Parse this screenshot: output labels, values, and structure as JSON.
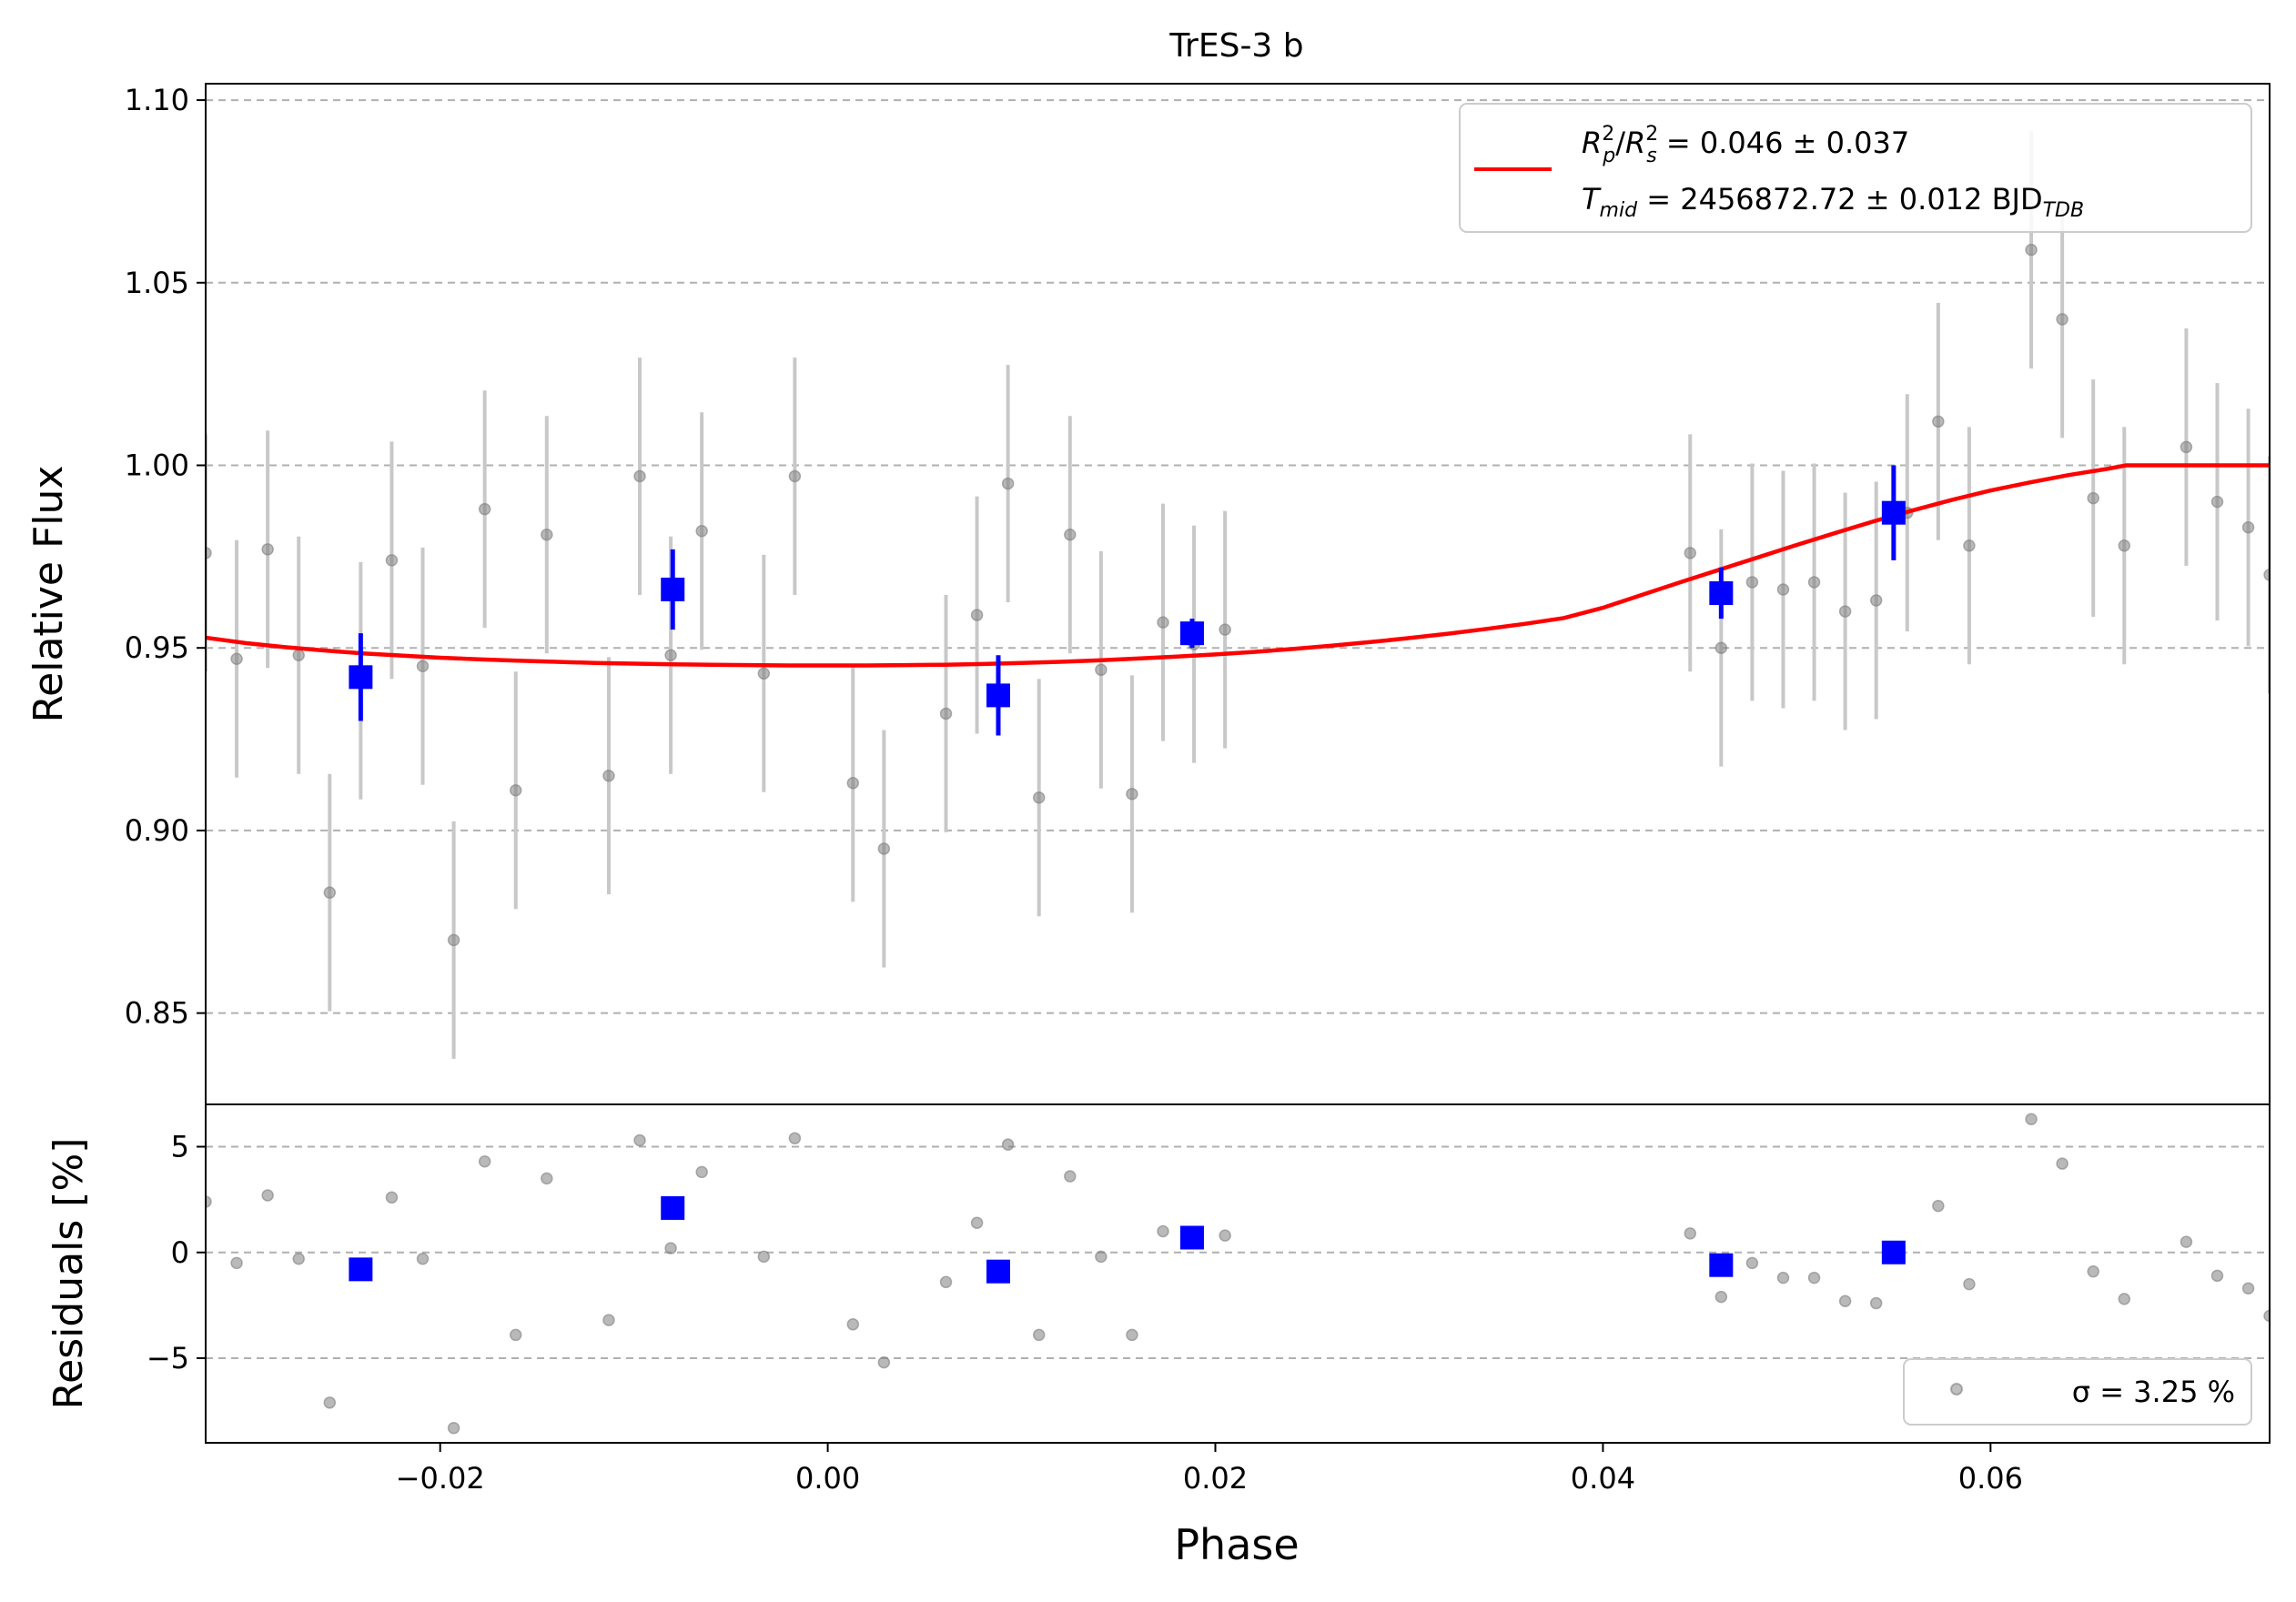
{
  "chart_data": [
    {
      "type": "scatter",
      "title": "TrES-3 b",
      "xlabel": "",
      "ylabel": "Relative Flux",
      "xlim": [
        -0.0321,
        0.0744
      ],
      "ylim": [
        0.825,
        1.1045
      ],
      "y_ticks": [
        0.85,
        0.9,
        0.95,
        1.0,
        1.05,
        1.1
      ],
      "y_tick_labels": [
        "0.85",
        "0.90",
        "0.95",
        "1.00",
        "1.05",
        "1.10"
      ],
      "grid": "horizontal dashed",
      "legend_position": "upper-right",
      "legend": {
        "line1": "Rp²/Rs² = 0.046 ± 0.037",
        "line2": "Tmid = 2456872.72 ± 0.012 BJD_TDB"
      },
      "colors": {
        "raw": "#808080",
        "binned": "#0000ff",
        "model": "#ff0000",
        "grid": "#b0b0b0"
      },
      "series": [
        {
          "kind": "raw",
          "points": [
            {
              "x": -0.0321,
              "y": 0.976,
              "err": 0.0325
            },
            {
              "x": -0.0305,
              "y": 0.947,
              "err": 0.0325
            },
            {
              "x": -0.0289,
              "y": 0.977,
              "err": 0.0325
            },
            {
              "x": -0.0273,
              "y": 0.948,
              "err": 0.0325
            },
            {
              "x": -0.0257,
              "y": 0.883,
              "err": 0.0325
            },
            {
              "x": -0.0241,
              "y": 0.941,
              "err": 0.0325
            },
            {
              "x": -0.0225,
              "y": 0.974,
              "err": 0.0325
            },
            {
              "x": -0.0209,
              "y": 0.945,
              "err": 0.0325
            },
            {
              "x": -0.0193,
              "y": 0.87,
              "err": 0.0325
            },
            {
              "x": -0.0177,
              "y": 0.988,
              "err": 0.0325
            },
            {
              "x": -0.0161,
              "y": 0.911,
              "err": 0.0325
            },
            {
              "x": -0.0145,
              "y": 0.981,
              "err": 0.0325
            },
            {
              "x": -0.0113,
              "y": 0.915,
              "err": 0.0325
            },
            {
              "x": -0.0097,
              "y": 0.997,
              "err": 0.0325
            },
            {
              "x": -0.0081,
              "y": 0.948,
              "err": 0.0325
            },
            {
              "x": -0.0065,
              "y": 0.982,
              "err": 0.0325
            },
            {
              "x": -0.0033,
              "y": 0.943,
              "err": 0.0325
            },
            {
              "x": -0.0017,
              "y": 0.997,
              "err": 0.0325
            },
            {
              "x": 0.0013,
              "y": 0.913,
              "err": 0.0325
            },
            {
              "x": 0.0029,
              "y": 0.895,
              "err": 0.0325
            },
            {
              "x": 0.0061,
              "y": 0.932,
              "err": 0.0325
            },
            {
              "x": 0.0077,
              "y": 0.959,
              "err": 0.0325
            },
            {
              "x": 0.0093,
              "y": 0.995,
              "err": 0.0325
            },
            {
              "x": 0.0109,
              "y": 0.909,
              "err": 0.0325
            },
            {
              "x": 0.0125,
              "y": 0.981,
              "err": 0.0325
            },
            {
              "x": 0.0141,
              "y": 0.944,
              "err": 0.0325
            },
            {
              "x": 0.0157,
              "y": 0.91,
              "err": 0.0325
            },
            {
              "x": 0.0173,
              "y": 0.957,
              "err": 0.0325
            },
            {
              "x": 0.0189,
              "y": 0.951,
              "err": 0.0325
            },
            {
              "x": 0.0205,
              "y": 0.955,
              "err": 0.0325
            },
            {
              "x": 0.0445,
              "y": 0.976,
              "err": 0.0325
            },
            {
              "x": 0.0461,
              "y": 0.95,
              "err": 0.0325
            },
            {
              "x": 0.0477,
              "y": 0.968,
              "err": 0.0325
            },
            {
              "x": 0.0493,
              "y": 0.966,
              "err": 0.0325
            },
            {
              "x": 0.0509,
              "y": 0.968,
              "err": 0.0325
            },
            {
              "x": 0.0525,
              "y": 0.96,
              "err": 0.0325
            },
            {
              "x": 0.0541,
              "y": 0.963,
              "err": 0.0325
            },
            {
              "x": 0.0557,
              "y": 0.987,
              "err": 0.0325
            },
            {
              "x": 0.0573,
              "y": 1.012,
              "err": 0.0325
            },
            {
              "x": 0.0589,
              "y": 0.978,
              "err": 0.0325
            },
            {
              "x": 0.0621,
              "y": 1.059,
              "err": 0.0325
            },
            {
              "x": 0.0637,
              "y": 1.04,
              "err": 0.0325
            },
            {
              "x": 0.0653,
              "y": 0.991,
              "err": 0.0325
            },
            {
              "x": 0.0669,
              "y": 0.978,
              "err": 0.0325
            },
            {
              "x": 0.0701,
              "y": 1.005,
              "err": 0.0325
            },
            {
              "x": 0.0717,
              "y": 0.99,
              "err": 0.0325
            },
            {
              "x": 0.0733,
              "y": 0.983,
              "err": 0.0325
            },
            {
              "x": 0.0744,
              "y": 0.97,
              "err": 0.0325
            }
          ]
        },
        {
          "kind": "binned",
          "points": [
            {
              "x": -0.0241,
              "y": 0.942,
              "err": 0.012
            },
            {
              "x": -0.008,
              "y": 0.966,
              "err": 0.011
            },
            {
              "x": 0.0088,
              "y": 0.937,
              "err": 0.011
            },
            {
              "x": 0.0188,
              "y": 0.954,
              "err": 0.004
            },
            {
              "x": 0.0461,
              "y": 0.965,
              "err": 0.007
            },
            {
              "x": 0.055,
              "y": 0.987,
              "err": 0.013
            }
          ]
        },
        {
          "kind": "model",
          "points": [
            {
              "x": -0.0321,
              "y": 0.9528
            },
            {
              "x": -0.03,
              "y": 0.9513
            },
            {
              "x": -0.028,
              "y": 0.9502
            },
            {
              "x": -0.026,
              "y": 0.9493
            },
            {
              "x": -0.024,
              "y": 0.9485
            },
            {
              "x": -0.022,
              "y": 0.9479
            },
            {
              "x": -0.02,
              "y": 0.9473
            },
            {
              "x": -0.018,
              "y": 0.9469
            },
            {
              "x": -0.016,
              "y": 0.9465
            },
            {
              "x": -0.014,
              "y": 0.9462
            },
            {
              "x": -0.012,
              "y": 0.9459
            },
            {
              "x": -0.01,
              "y": 0.9457
            },
            {
              "x": -0.008,
              "y": 0.9455
            },
            {
              "x": -0.006,
              "y": 0.9454
            },
            {
              "x": -0.004,
              "y": 0.9453
            },
            {
              "x": -0.002,
              "y": 0.9452
            },
            {
              "x": 0.0,
              "y": 0.9452
            },
            {
              "x": 0.002,
              "y": 0.9452
            },
            {
              "x": 0.004,
              "y": 0.9453
            },
            {
              "x": 0.006,
              "y": 0.9454
            },
            {
              "x": 0.008,
              "y": 0.9456
            },
            {
              "x": 0.01,
              "y": 0.9459
            },
            {
              "x": 0.012,
              "y": 0.9462
            },
            {
              "x": 0.014,
              "y": 0.9466
            },
            {
              "x": 0.016,
              "y": 0.9471
            },
            {
              "x": 0.018,
              "y": 0.9476
            },
            {
              "x": 0.02,
              "y": 0.9482
            },
            {
              "x": 0.022,
              "y": 0.9489
            },
            {
              "x": 0.024,
              "y": 0.9497
            },
            {
              "x": 0.026,
              "y": 0.9506
            },
            {
              "x": 0.028,
              "y": 0.9516
            },
            {
              "x": 0.03,
              "y": 0.9527
            },
            {
              "x": 0.032,
              "y": 0.9539
            },
            {
              "x": 0.034,
              "y": 0.9552
            },
            {
              "x": 0.036,
              "y": 0.9566
            },
            {
              "x": 0.038,
              "y": 0.9582
            },
            {
              "x": 0.04,
              "y": 0.961
            },
            {
              "x": 0.042,
              "y": 0.9645
            },
            {
              "x": 0.044,
              "y": 0.968
            },
            {
              "x": 0.046,
              "y": 0.9714
            },
            {
              "x": 0.048,
              "y": 0.9748
            },
            {
              "x": 0.05,
              "y": 0.9782
            },
            {
              "x": 0.052,
              "y": 0.9815
            },
            {
              "x": 0.054,
              "y": 0.9847
            },
            {
              "x": 0.056,
              "y": 0.9877
            },
            {
              "x": 0.058,
              "y": 0.9905
            },
            {
              "x": 0.06,
              "y": 0.9931
            },
            {
              "x": 0.062,
              "y": 0.9953
            },
            {
              "x": 0.064,
              "y": 0.9973
            },
            {
              "x": 0.066,
              "y": 0.999
            },
            {
              "x": 0.067,
              "y": 1.0
            },
            {
              "x": 0.0744,
              "y": 1.0
            }
          ]
        }
      ]
    },
    {
      "type": "scatter",
      "title": "",
      "xlabel": "Phase",
      "ylabel": "Residuals [%]",
      "xlim": [
        -0.0321,
        0.0744
      ],
      "ylim": [
        -9.0,
        7.0
      ],
      "x_ticks": [
        -0.02,
        0.0,
        0.02,
        0.04,
        0.06
      ],
      "x_tick_labels": [
        "−0.02",
        "0.00",
        "0.02",
        "0.04",
        "0.06"
      ],
      "y_ticks": [
        -5,
        0,
        5
      ],
      "y_tick_labels": [
        "−5",
        "0",
        "5"
      ],
      "grid": "horizontal dashed",
      "legend_position": "lower-right",
      "legend": {
        "label": "σ = 3.25 %"
      },
      "series": [
        {
          "kind": "raw",
          "points": [
            {
              "x": -0.0321,
              "y": 2.4
            },
            {
              "x": -0.0305,
              "y": -0.5
            },
            {
              "x": -0.0289,
              "y": 2.7
            },
            {
              "x": -0.0273,
              "y": -0.3
            },
            {
              "x": -0.0257,
              "y": -7.1
            },
            {
              "x": -0.0225,
              "y": 2.6
            },
            {
              "x": -0.0209,
              "y": -0.3
            },
            {
              "x": -0.0193,
              "y": -8.3
            },
            {
              "x": -0.0177,
              "y": 4.3
            },
            {
              "x": -0.0161,
              "y": -3.9
            },
            {
              "x": -0.0145,
              "y": 3.5
            },
            {
              "x": -0.0113,
              "y": -3.2
            },
            {
              "x": -0.0097,
              "y": 5.3
            },
            {
              "x": -0.0081,
              "y": 0.2
            },
            {
              "x": -0.0065,
              "y": 3.8
            },
            {
              "x": -0.0033,
              "y": -0.2
            },
            {
              "x": -0.0017,
              "y": 5.4
            },
            {
              "x": 0.0013,
              "y": -3.4
            },
            {
              "x": 0.0029,
              "y": -5.2
            },
            {
              "x": 0.0061,
              "y": -1.4
            },
            {
              "x": 0.0077,
              "y": 1.4
            },
            {
              "x": 0.0093,
              "y": 5.1
            },
            {
              "x": 0.0109,
              "y": -3.9
            },
            {
              "x": 0.0125,
              "y": 3.6
            },
            {
              "x": 0.0141,
              "y": -0.2
            },
            {
              "x": 0.0157,
              "y": -3.9
            },
            {
              "x": 0.0173,
              "y": 1.0
            },
            {
              "x": 0.0205,
              "y": 0.8
            },
            {
              "x": 0.0445,
              "y": 0.9
            },
            {
              "x": 0.0461,
              "y": -2.1
            },
            {
              "x": 0.0477,
              "y": -0.5
            },
            {
              "x": 0.0493,
              "y": -1.2
            },
            {
              "x": 0.0509,
              "y": -1.2
            },
            {
              "x": 0.0525,
              "y": -2.3
            },
            {
              "x": 0.0541,
              "y": -2.4
            },
            {
              "x": 0.0573,
              "y": 2.2
            },
            {
              "x": 0.0589,
              "y": -1.5
            },
            {
              "x": 0.0621,
              "y": 6.3
            },
            {
              "x": 0.0637,
              "y": 4.2
            },
            {
              "x": 0.0653,
              "y": -0.9
            },
            {
              "x": 0.0669,
              "y": -2.2
            },
            {
              "x": 0.0701,
              "y": 0.5
            },
            {
              "x": 0.0717,
              "y": -1.1
            },
            {
              "x": 0.0733,
              "y": -1.7
            },
            {
              "x": 0.0744,
              "y": -3.0
            }
          ]
        },
        {
          "kind": "binned",
          "points": [
            {
              "x": -0.0241,
              "y": -0.8
            },
            {
              "x": -0.008,
              "y": 2.1
            },
            {
              "x": 0.0088,
              "y": -0.9
            },
            {
              "x": 0.0188,
              "y": 0.7
            },
            {
              "x": 0.0461,
              "y": -0.6
            },
            {
              "x": 0.055,
              "y": 0.0
            }
          ]
        }
      ]
    }
  ]
}
